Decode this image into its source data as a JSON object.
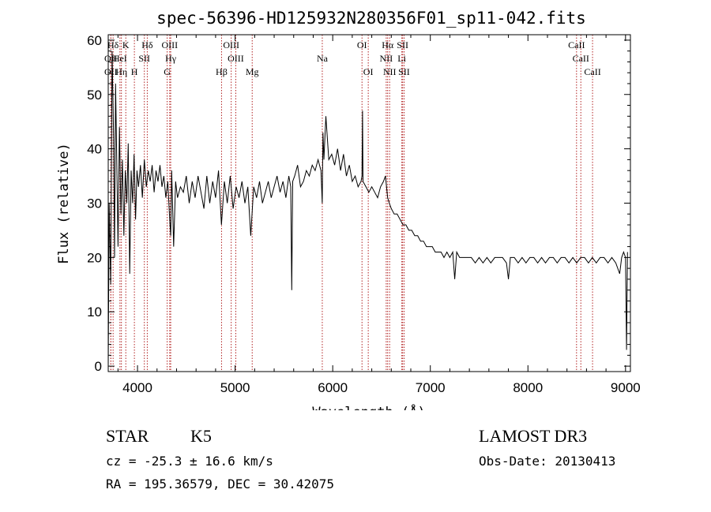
{
  "chart_data": {
    "type": "line",
    "title": "spec-56396-HD125932N280356F01_sp11-042.fits",
    "xlabel": "Wavelength (Å)",
    "ylabel": "Flux (relative)",
    "xlim": [
      3700,
      9050
    ],
    "ylim": [
      -1,
      61
    ],
    "xticks": [
      4000,
      5000,
      6000,
      7000,
      8000,
      9000
    ],
    "yticks": [
      0,
      10,
      20,
      30,
      40,
      50,
      60
    ],
    "series": [
      {
        "name": "flux",
        "x": [
          3700,
          3710,
          3725,
          3740,
          3755,
          3765,
          3775,
          3790,
          3800,
          3815,
          3830,
          3845,
          3860,
          3875,
          3890,
          3905,
          3920,
          3935,
          3950,
          3965,
          3980,
          3995,
          4010,
          4030,
          4050,
          4070,
          4090,
          4110,
          4130,
          4150,
          4170,
          4190,
          4210,
          4230,
          4250,
          4270,
          4290,
          4310,
          4330,
          4340,
          4350,
          4370,
          4390,
          4410,
          4440,
          4470,
          4500,
          4530,
          4560,
          4590,
          4620,
          4650,
          4680,
          4710,
          4740,
          4770,
          4800,
          4830,
          4860,
          4890,
          4920,
          4950,
          4980,
          5010,
          5040,
          5070,
          5100,
          5130,
          5160,
          5190,
          5220,
          5250,
          5280,
          5310,
          5340,
          5370,
          5400,
          5430,
          5460,
          5490,
          5520,
          5550,
          5570,
          5580,
          5590,
          5610,
          5640,
          5670,
          5700,
          5730,
          5760,
          5790,
          5820,
          5850,
          5880,
          5893,
          5900,
          5910,
          5930,
          5960,
          5990,
          6020,
          6050,
          6080,
          6110,
          6140,
          6170,
          6200,
          6230,
          6260,
          6290,
          6300,
          6305,
          6310,
          6340,
          6370,
          6400,
          6430,
          6460,
          6490,
          6520,
          6540,
          6563,
          6580,
          6600,
          6630,
          6660,
          6690,
          6720,
          6750,
          6780,
          6810,
          6840,
          6870,
          6900,
          6930,
          6960,
          6990,
          7020,
          7050,
          7080,
          7110,
          7140,
          7170,
          7200,
          7230,
          7250,
          7270,
          7300,
          7340,
          7380,
          7420,
          7460,
          7500,
          7540,
          7580,
          7620,
          7660,
          7700,
          7740,
          7780,
          7800,
          7820,
          7860,
          7900,
          7940,
          7980,
          8020,
          8060,
          8100,
          8140,
          8180,
          8220,
          8260,
          8300,
          8340,
          8380,
          8420,
          8460,
          8500,
          8540,
          8580,
          8620,
          8660,
          8700,
          8740,
          8780,
          8820,
          8860,
          8900,
          8940,
          8960,
          8980,
          9000,
          9010,
          9020
        ],
        "y": [
          0,
          30,
          15,
          58,
          42,
          20,
          52,
          35,
          22,
          44,
          28,
          38,
          24,
          36,
          30,
          41,
          17,
          36,
          30,
          39,
          27,
          36,
          33,
          37,
          31,
          38,
          33,
          36,
          34,
          37,
          32,
          36,
          34,
          37,
          33,
          35,
          31,
          34,
          27,
          24,
          36,
          22,
          34,
          31,
          33,
          32,
          35,
          30,
          34,
          31,
          35,
          32,
          29,
          35,
          30,
          34,
          31,
          36,
          26,
          34,
          30,
          35,
          29,
          33,
          31,
          34,
          30,
          33,
          24,
          33,
          31,
          34,
          30,
          32,
          34,
          31,
          33,
          35,
          32,
          34,
          31,
          35,
          33,
          14,
          34,
          35,
          37,
          33,
          34,
          36,
          35,
          37,
          36,
          38,
          36,
          30,
          43,
          38,
          46,
          38,
          39,
          37,
          40,
          36,
          39,
          35,
          37,
          34,
          35,
          33,
          34,
          35,
          47,
          34,
          33,
          32,
          33,
          32,
          31,
          33,
          34,
          35,
          31,
          30,
          29,
          28,
          28,
          27,
          26,
          26,
          25,
          25,
          24,
          24,
          23,
          23,
          22,
          22,
          22,
          21,
          21,
          21,
          20,
          21,
          20,
          21,
          16,
          21,
          20,
          20,
          20,
          20,
          19,
          20,
          19,
          20,
          19,
          20,
          20,
          20,
          19,
          16,
          20,
          20,
          19,
          20,
          19,
          20,
          20,
          19,
          20,
          19,
          20,
          20,
          19,
          20,
          20,
          19,
          20,
          19,
          20,
          20,
          19,
          20,
          19,
          20,
          20,
          19,
          20,
          19,
          17,
          20,
          21,
          20,
          3,
          21
        ]
      }
    ],
    "lines": [
      {
        "label": "Hδ",
        "x": 3750,
        "row": 0
      },
      {
        "label": "K",
        "x": 3880,
        "row": 0
      },
      {
        "label": "Hδ",
        "x": 4100,
        "row": 0
      },
      {
        "label": "OIII",
        "x": 4330,
        "row": 0
      },
      {
        "label": "OIII",
        "x": 4960,
        "row": 0
      },
      {
        "label": "OI",
        "x": 6300,
        "row": 0
      },
      {
        "label": "Hα",
        "x": 6563,
        "row": 0
      },
      {
        "label": "SII",
        "x": 6716,
        "row": 0
      },
      {
        "label": "CaII",
        "x": 8498,
        "row": 0
      },
      {
        "label": "OII",
        "x": 3727,
        "row": 1
      },
      {
        "label": "HeI",
        "x": 3820,
        "row": 1
      },
      {
        "label": "SII",
        "x": 4070,
        "row": 1
      },
      {
        "label": "Hγ",
        "x": 4340,
        "row": 1
      },
      {
        "label": "OIII",
        "x": 5007,
        "row": 1
      },
      {
        "label": "Na",
        "x": 5893,
        "row": 1
      },
      {
        "label": "NII",
        "x": 6548,
        "row": 1
      },
      {
        "label": "Li",
        "x": 6708,
        "row": 1
      },
      {
        "label": "CaII",
        "x": 8542,
        "row": 1
      },
      {
        "label": "OII",
        "x": 3727,
        "row": 2
      },
      {
        "label": "Hη",
        "x": 3835,
        "row": 2
      },
      {
        "label": "H",
        "x": 3968,
        "row": 2
      },
      {
        "label": "G",
        "x": 4304,
        "row": 2
      },
      {
        "label": "Hβ",
        "x": 4861,
        "row": 2
      },
      {
        "label": "Mg",
        "x": 5175,
        "row": 2
      },
      {
        "label": "OI",
        "x": 6364,
        "row": 2
      },
      {
        "label": "NII",
        "x": 6583,
        "row": 2
      },
      {
        "label": "SII",
        "x": 6731,
        "row": 2
      },
      {
        "label": "CaII",
        "x": 8662,
        "row": 2
      }
    ]
  },
  "info": {
    "object_type": "STAR",
    "subclass": "K5",
    "survey": "LAMOST DR3",
    "redshift": "cz = -25.3 ± 16.6 km/s",
    "obs_date": "Obs-Date: 20130413",
    "coords": "RA = 195.36579, DEC =  30.42075"
  }
}
